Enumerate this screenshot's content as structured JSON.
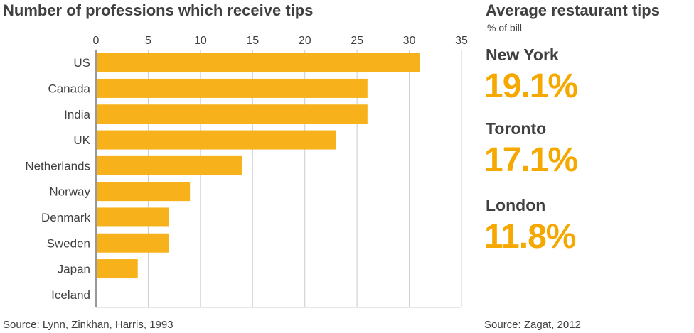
{
  "left_panel": {
    "title": "Number of professions which receive tips",
    "source": "Source: Lynn, Zinkhan, Harris, 1993"
  },
  "right_panel": {
    "title": "Average restaurant tips",
    "subtitle": "% of bill",
    "cities": [
      {
        "name": "New York",
        "value": "19.1%"
      },
      {
        "name": "Toronto",
        "value": "17.1%"
      },
      {
        "name": "London",
        "value": "11.8%"
      }
    ],
    "source": "Source: Zagat, 2012"
  },
  "colors": {
    "bar": "#f7b21b",
    "accent_text": "#f5a800",
    "grid": "#cccccc",
    "text": "#404040"
  },
  "chart_data": {
    "type": "bar",
    "orientation": "horizontal",
    "title": "Number of professions which receive tips",
    "categories": [
      "US",
      "Canada",
      "India",
      "UK",
      "Netherlands",
      "Norway",
      "Denmark",
      "Sweden",
      "Japan",
      "Iceland"
    ],
    "values": [
      31,
      26,
      26,
      23,
      14,
      9,
      7,
      7,
      4,
      0
    ],
    "xlim": [
      0,
      35
    ],
    "xticks": [
      0,
      5,
      10,
      15,
      20,
      25,
      30,
      35
    ],
    "grid": true,
    "xaxis_position": "top"
  }
}
